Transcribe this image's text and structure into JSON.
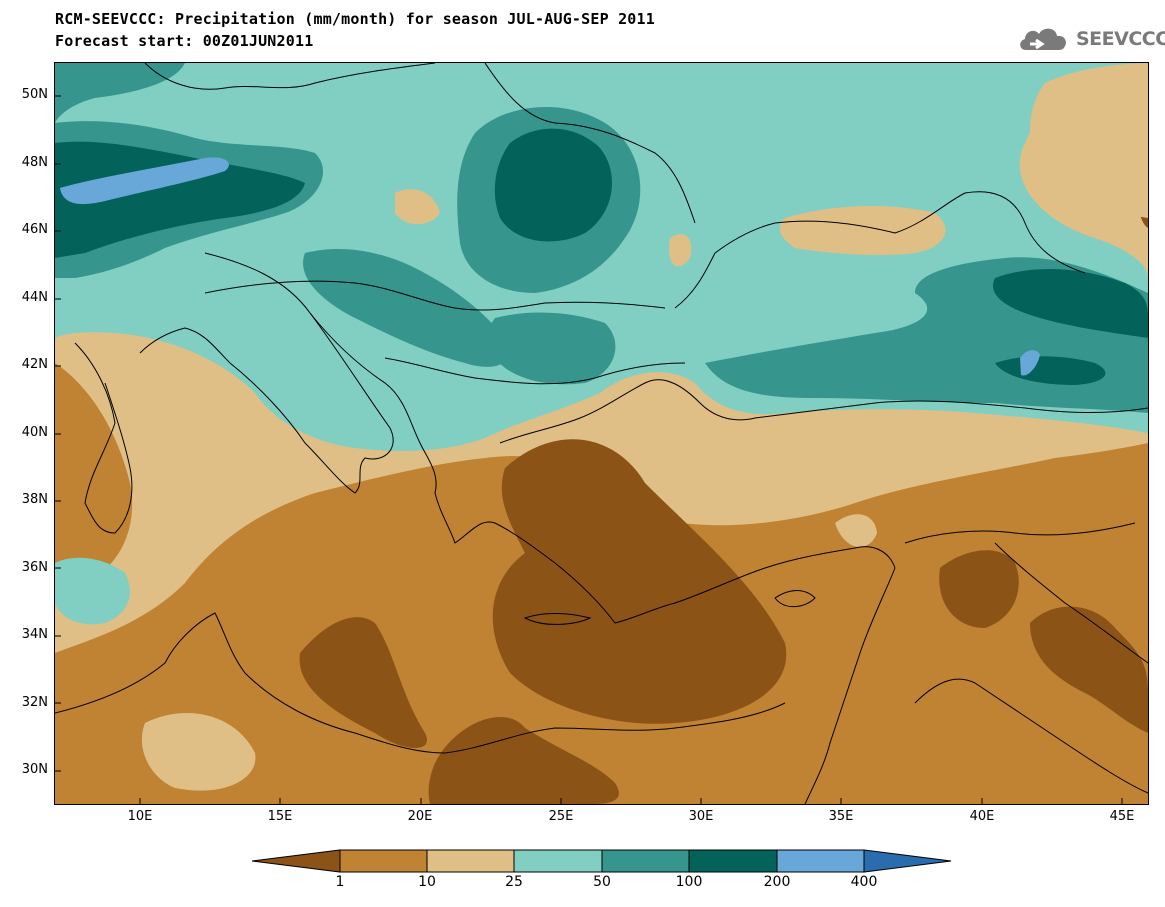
{
  "header": {
    "title_line1": "RCM-SEEVCCC: Precipitation (mm/month) for season JUL-AUG-SEP 2011",
    "title_line2": "Forecast start: 00Z01JUN2011",
    "logo_text": "SEEVCCC",
    "logo_icon": "cloud-icon"
  },
  "map": {
    "variable": "Precipitation",
    "units": "mm/month",
    "region": "South-East Europe / Eastern Mediterranean",
    "lon_range": [
      7,
      46
    ],
    "lat_range": [
      29,
      51
    ],
    "y_tick_labels": [
      "50N",
      "48N",
      "46N",
      "44N",
      "42N",
      "40N",
      "38N",
      "36N",
      "34N",
      "32N",
      "30N"
    ],
    "x_tick_labels": [
      "10E",
      "15E",
      "20E",
      "25E",
      "30E",
      "35E",
      "40E",
      "45E"
    ]
  },
  "colorbar": {
    "levels": [
      "1",
      "10",
      "25",
      "50",
      "100",
      "200",
      "400"
    ],
    "colors": [
      "#8c5316",
      "#c08233",
      "#dfbf86",
      "#80cfc2",
      "#36968e",
      "#03635a",
      "#68a8d8",
      "#2a6cae"
    ]
  }
}
